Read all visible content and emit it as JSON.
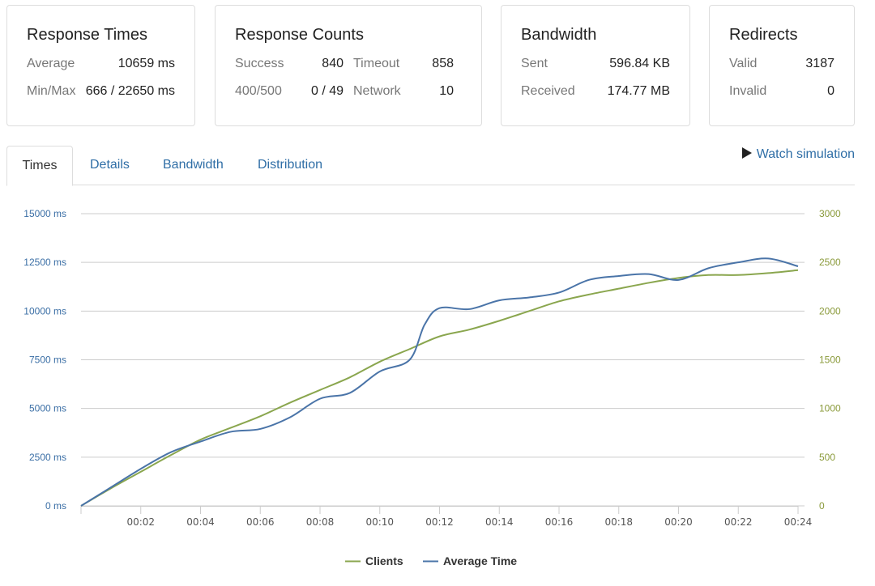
{
  "cards": {
    "response_times": {
      "title": "Response Times",
      "average_label": "Average",
      "average_value": "10659 ms",
      "minmax_label": "Min/Max",
      "minmax_value": "666 / 22650 ms"
    },
    "response_counts": {
      "title": "Response Counts",
      "success_label": "Success",
      "success_value": "840",
      "timeout_label": "Timeout",
      "timeout_value": "858",
      "errors_label": "400/500",
      "errors_value": "0 / 49",
      "network_label": "Network",
      "network_value": "10"
    },
    "bandwidth": {
      "title": "Bandwidth",
      "sent_label": "Sent",
      "sent_value": "596.84 KB",
      "received_label": "Received",
      "received_value": "174.77 MB"
    },
    "redirects": {
      "title": "Redirects",
      "valid_label": "Valid",
      "valid_value": "3187",
      "invalid_label": "Invalid",
      "invalid_value": "0"
    }
  },
  "tabs": [
    {
      "label": "Times",
      "active": true
    },
    {
      "label": "Details",
      "active": false
    },
    {
      "label": "Bandwidth",
      "active": false
    },
    {
      "label": "Distribution",
      "active": false
    }
  ],
  "watch_simulation": {
    "label": "Watch simulation",
    "icon": "play-icon"
  },
  "colors": {
    "clients": "#8aa64e",
    "average_time": "#4a74a8",
    "grid": "#cccccc",
    "link": "#2f6ea6"
  },
  "chart_data": {
    "type": "line",
    "x_ticks": [
      "00:02",
      "00:04",
      "00:06",
      "00:08",
      "00:10",
      "00:12",
      "00:14",
      "00:16",
      "00:18",
      "00:20",
      "00:22",
      "00:24"
    ],
    "y_left_ticks": [
      "0 ms",
      "2500 ms",
      "5000 ms",
      "7500 ms",
      "10000 ms",
      "12500 ms",
      "15000 ms"
    ],
    "y_right_ticks": [
      "0",
      "500",
      "1000",
      "1500",
      "2000",
      "2500",
      "3000"
    ],
    "y_left_range": [
      0,
      15000
    ],
    "y_right_range": [
      0,
      3000
    ],
    "x_range_seconds": [
      0,
      24
    ],
    "grid": true,
    "legend_position": "bottom-center",
    "series": [
      {
        "name": "Clients",
        "axis": "right",
        "x": [
          0,
          1,
          2,
          3,
          4,
          5,
          6,
          7,
          8,
          9,
          10,
          11,
          12,
          13,
          14,
          15,
          16,
          17,
          18,
          19,
          20,
          21,
          22,
          23,
          24
        ],
        "values": [
          0,
          180,
          350,
          520,
          680,
          800,
          920,
          1060,
          1190,
          1320,
          1480,
          1610,
          1740,
          1810,
          1900,
          2000,
          2100,
          2170,
          2230,
          2290,
          2340,
          2370,
          2370,
          2390,
          2420
        ]
      },
      {
        "name": "Average Time",
        "axis": "left",
        "x": [
          0,
          1,
          2,
          3,
          4,
          5,
          6,
          7,
          8,
          9,
          10,
          11,
          11.5,
          12,
          13,
          14,
          15,
          16,
          17,
          18,
          19,
          20,
          21,
          22,
          23,
          24
        ],
        "values": [
          0,
          950,
          1900,
          2750,
          3300,
          3800,
          3950,
          4550,
          5500,
          5800,
          6900,
          7500,
          9300,
          10150,
          10100,
          10550,
          10700,
          10950,
          11600,
          11800,
          11900,
          11600,
          12200,
          12500,
          12700,
          12300
        ]
      }
    ]
  }
}
